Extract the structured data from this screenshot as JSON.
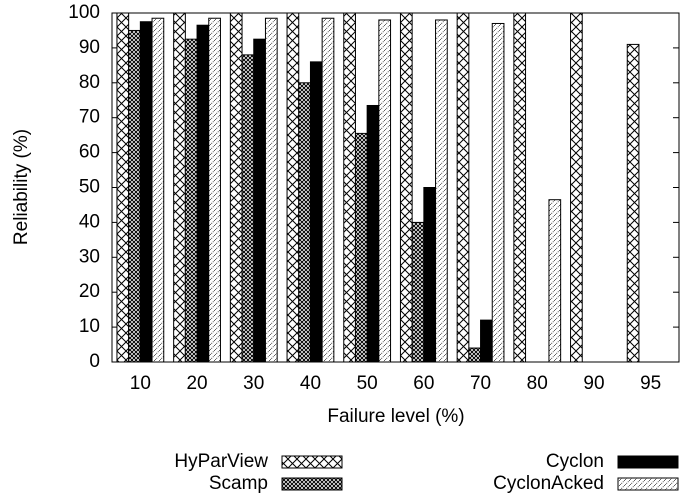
{
  "chart_data": {
    "type": "bar",
    "x_label": "Failure level (%)",
    "y_label": "Reliability (%)",
    "categories": [
      "10",
      "20",
      "30",
      "40",
      "50",
      "60",
      "70",
      "80",
      "90",
      "95"
    ],
    "series": [
      {
        "name": "HyParView",
        "color": "#000000",
        "pattern": "crosshatch",
        "values": [
          100,
          100,
          100,
          100,
          100,
          100,
          100,
          100,
          100,
          91
        ]
      },
      {
        "name": "Scamp",
        "color": "#000000",
        "pattern": "dense",
        "values": [
          95,
          92.5,
          88,
          80,
          65.5,
          40,
          4,
          0,
          0,
          0
        ]
      },
      {
        "name": "Cyclon",
        "color": "#000000",
        "pattern": "solid",
        "values": [
          97.5,
          96.5,
          92.5,
          86,
          73.5,
          50,
          12,
          0,
          0,
          0
        ]
      },
      {
        "name": "CyclonAcked",
        "color": "#000000",
        "pattern": "diagonal",
        "values": [
          98.5,
          98.5,
          98.5,
          98.5,
          98,
          98,
          97,
          46.5,
          0,
          0
        ]
      }
    ],
    "ylim": [
      0,
      100
    ],
    "yticks": [
      0,
      10,
      20,
      30,
      40,
      50,
      60,
      70,
      80,
      90,
      100
    ],
    "legend": "bottom"
  }
}
